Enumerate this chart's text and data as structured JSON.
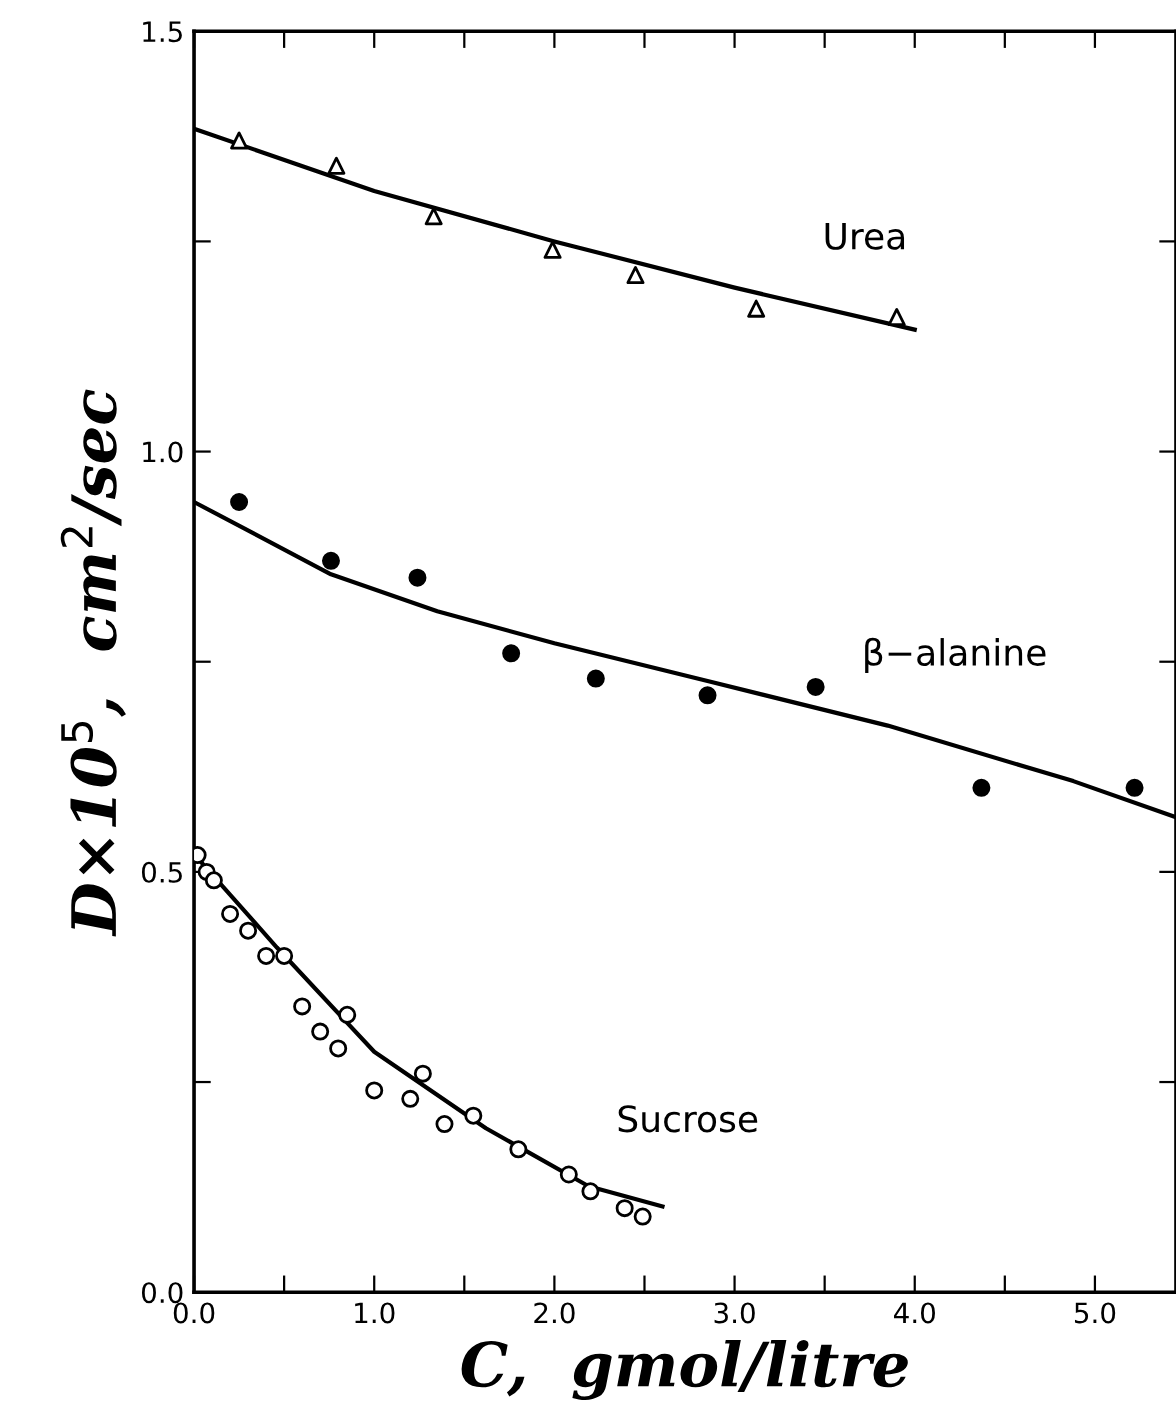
{
  "chart_data": {
    "type": "scatter",
    "xlabel": "C,  gmol/litre",
    "ylabel": "D×10$^{5}$,  cm$^{2}$/sec",
    "xlim": [
      0,
      5.45
    ],
    "ylim": [
      0,
      1.5
    ],
    "xticks": [
      {
        "value": 0,
        "label": "0.0"
      },
      {
        "value": 0.5,
        "label": null
      },
      {
        "value": 1,
        "label": "1.0"
      },
      {
        "value": 1.5,
        "label": null
      },
      {
        "value": 2,
        "label": "2.0"
      },
      {
        "value": 2.5,
        "label": null
      },
      {
        "value": 3,
        "label": "3.0"
      },
      {
        "value": 3.5,
        "label": null
      },
      {
        "value": 4,
        "label": "4.0"
      },
      {
        "value": 4.5,
        "label": null
      },
      {
        "value": 5,
        "label": "5.0"
      }
    ],
    "yticks": [
      {
        "value": 0,
        "label": "0.0"
      },
      {
        "value": 0.25,
        "label": null
      },
      {
        "value": 0.5,
        "label": "0.5"
      },
      {
        "value": 0.75,
        "label": null
      },
      {
        "value": 1,
        "label": "1.0"
      },
      {
        "value": 1.25,
        "label": null
      },
      {
        "value": 1.5,
        "label": "1.5"
      }
    ],
    "grid": false,
    "legend": false,
    "series": [
      {
        "name": "Urea",
        "marker": "triangle",
        "color": "#ffffff",
        "x": [
          0.25,
          0.79,
          1.33,
          1.99,
          2.45,
          3.12,
          3.9
        ],
        "values": [
          1.37,
          1.34,
          1.28,
          1.24,
          1.21,
          1.17,
          1.16
        ]
      },
      {
        "type": "line",
        "color": "#000000",
        "x": [
          0,
          1,
          2,
          3,
          4
        ],
        "values": [
          1.384,
          1.31,
          1.25,
          1.195,
          1.145
        ]
      },
      {
        "name": "β−alanine",
        "marker": "circle",
        "color": "#000000",
        "x": [
          0.25,
          0.76,
          1.24,
          1.76,
          2.23,
          2.85,
          3.45,
          4.37,
          5.22
        ],
        "values": [
          0.94,
          0.87,
          0.85,
          0.76,
          0.73,
          0.71,
          0.72,
          0.6,
          0.6
        ]
      },
      {
        "type": "line",
        "color": "#000000",
        "x": [
          0,
          0.76,
          1.35,
          2.0,
          2.85,
          3.85,
          4.88,
          5.45
        ],
        "values": [
          0.94,
          0.854,
          0.81,
          0.772,
          0.727,
          0.674,
          0.608,
          0.565
        ]
      },
      {
        "name": "Sucrose",
        "marker": "circle",
        "color": "#ffffff",
        "x": [
          0.02,
          0.07,
          0.11,
          0.2,
          0.3,
          0.4,
          0.5,
          0.6,
          0.85,
          0.7,
          0.8,
          1.0,
          1.27,
          1.2,
          1.39,
          1.55,
          1.8,
          2.08,
          2.2,
          2.39,
          2.49
        ],
        "values": [
          0.52,
          0.5,
          0.49,
          0.45,
          0.43,
          0.4,
          0.4,
          0.34,
          0.33,
          0.31,
          0.29,
          0.24,
          0.26,
          0.23,
          0.2,
          0.21,
          0.17,
          0.14,
          0.12,
          0.1,
          0.09
        ]
      },
      {
        "type": "line",
        "color": "#000000",
        "x": [
          0,
          0.46,
          1.0,
          1.62,
          2.19,
          2.6
        ],
        "values": [
          0.521,
          0.41,
          0.286,
          0.195,
          0.126,
          0.102
        ]
      }
    ]
  }
}
